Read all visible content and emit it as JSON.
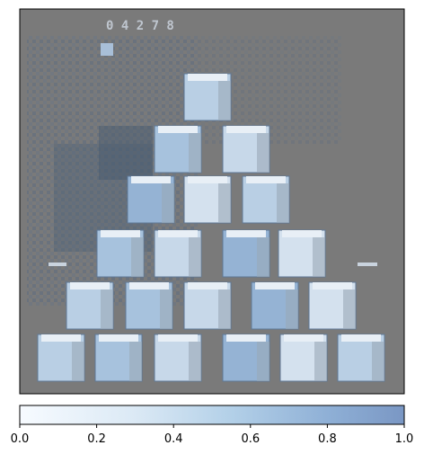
{
  "image": {
    "description_icon": "pyramid-of-game-boxes-overlay",
    "score_text": "0 4 2 7 8",
    "background_gray": "#7a7a7a",
    "overlay_color": "#1f4e79"
  },
  "colorbar": {
    "ticks": [
      "0.0",
      "0.2",
      "0.4",
      "0.6",
      "0.8",
      "1.0"
    ],
    "range": [
      0.0,
      1.0
    ],
    "colors": [
      "#f7fbff",
      "#cfe1f2",
      "#a9c9e4",
      "#8fb2d6",
      "#7b9bc6"
    ]
  }
}
